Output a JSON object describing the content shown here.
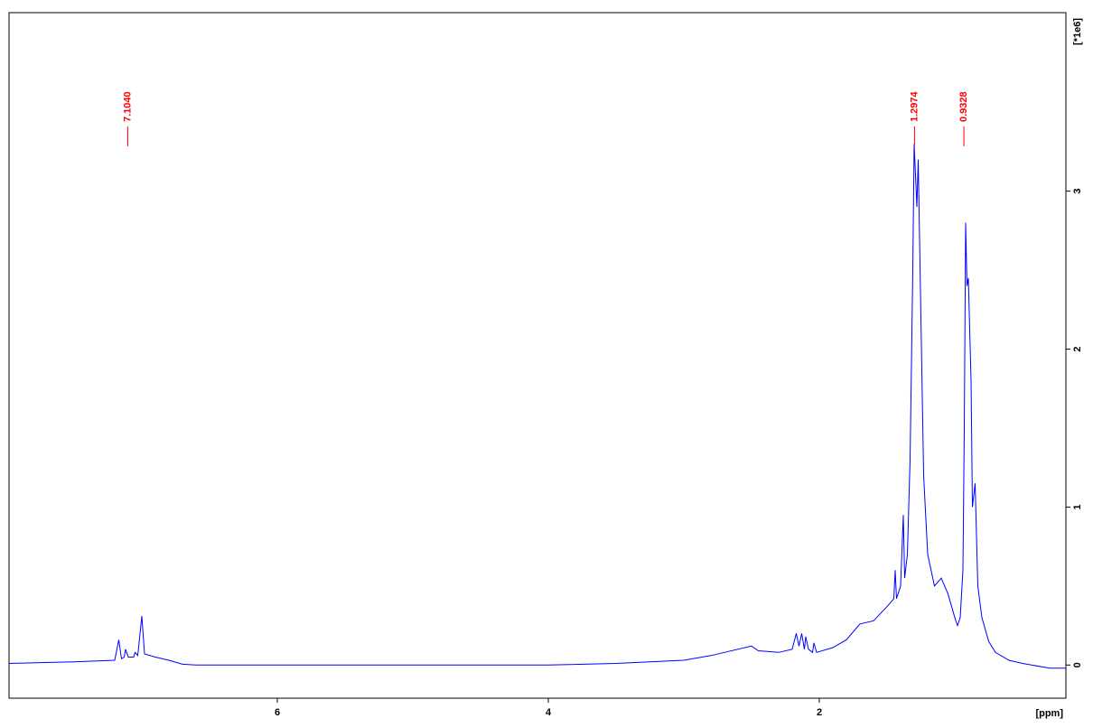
{
  "chart_data": {
    "type": "line",
    "x_label": "[ppm]",
    "y_label": "[*1e6]",
    "x": [
      7.98,
      7.5,
      7.2,
      7.17,
      7.15,
      7.13,
      7.12,
      7.1,
      7.06,
      7.05,
      7.03,
      7.0,
      6.98,
      6.9,
      6.8,
      6.7,
      6.6,
      4.0,
      3.5,
      3.0,
      2.8,
      2.5,
      2.45,
      2.3,
      2.2,
      2.17,
      2.15,
      2.13,
      2.11,
      2.1,
      2.08,
      2.05,
      2.04,
      2.02,
      1.9,
      1.8,
      1.7,
      1.6,
      1.5,
      1.45,
      1.44,
      1.43,
      1.4,
      1.38,
      1.37,
      1.35,
      1.33,
      1.31,
      1.3,
      1.28,
      1.27,
      1.25,
      1.23,
      1.2,
      1.15,
      1.1,
      1.05,
      1.0,
      0.98,
      0.96,
      0.94,
      0.93,
      0.92,
      0.91,
      0.9,
      0.88,
      0.87,
      0.85,
      0.83,
      0.8,
      0.75,
      0.7,
      0.6,
      0.5,
      0.3,
      0.18
    ],
    "series": [
      {
        "color": "#0000ff",
        "values": [
          0.01,
          0.02,
          0.03,
          0.16,
          0.04,
          0.05,
          0.1,
          0.05,
          0.05,
          0.08,
          0.06,
          0.31,
          0.07,
          0.05,
          0.03,
          0.005,
          0,
          0,
          0.01,
          0.03,
          0.06,
          0.12,
          0.09,
          0.08,
          0.1,
          0.2,
          0.12,
          0.2,
          0.1,
          0.18,
          0.1,
          0.08,
          0.14,
          0.08,
          0.11,
          0.16,
          0.26,
          0.28,
          0.37,
          0.42,
          0.6,
          0.42,
          0.5,
          0.95,
          0.55,
          0.7,
          1.3,
          2.5,
          3.3,
          2.9,
          3.2,
          2.2,
          1.2,
          0.7,
          0.5,
          0.55,
          0.45,
          0.3,
          0.25,
          0.3,
          0.6,
          1.5,
          2.8,
          2.4,
          2.45,
          1.8,
          1.0,
          1.15,
          0.5,
          0.3,
          0.15,
          0.08,
          0.03,
          0.01,
          -0.02,
          -0.02
        ]
      }
    ],
    "peaks": [
      {
        "value": 7.104,
        "label": "7.1040"
      },
      {
        "value": 1.2974,
        "label": "1.2974"
      },
      {
        "value": 0.9328,
        "label": "0.9328"
      }
    ],
    "peak_color": "#ff0000",
    "xlim": [
      7.98,
      0.18
    ],
    "xticks": [
      6,
      4,
      2
    ],
    "ylim": [
      -0.21,
      4.13
    ],
    "yticks": [
      0,
      1,
      2,
      3
    ]
  }
}
